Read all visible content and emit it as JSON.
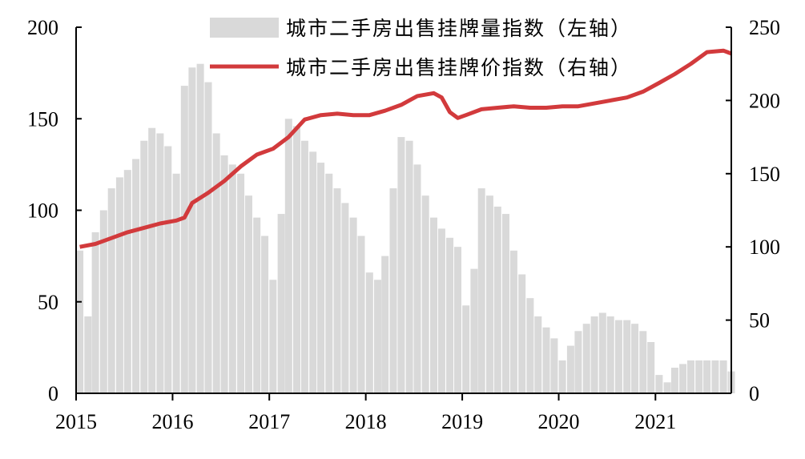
{
  "chart_data": {
    "type": "bar+line",
    "title": "",
    "x_axis": {
      "type": "date",
      "ticks": [
        "2015",
        "2016",
        "2017",
        "2018",
        "2019",
        "2020",
        "2021"
      ],
      "range": [
        "2015-01-01",
        "2021-10-15"
      ]
    },
    "y_left": {
      "ticks": [
        "0",
        "50",
        "100",
        "150",
        "200"
      ],
      "range": [
        0,
        200
      ]
    },
    "y_right": {
      "ticks": [
        "0",
        "50",
        "100",
        "150",
        "200",
        "250"
      ],
      "range": [
        0,
        250
      ]
    },
    "legend": {
      "placement": "top-center"
    },
    "grid": false,
    "series": [
      {
        "name": "城市二手房出售挂牌量指数（左轴）",
        "type": "bar",
        "axis": "left",
        "color": "#d9d9d9",
        "x": [
          "2015-01",
          "2015-02",
          "2015-03",
          "2015-04",
          "2015-05",
          "2015-06",
          "2015-07",
          "2015-08",
          "2015-09",
          "2015-10",
          "2015-11",
          "2015-12",
          "2016-01",
          "2016-02",
          "2016-03",
          "2016-04",
          "2016-05",
          "2016-06",
          "2016-07",
          "2016-08",
          "2016-09",
          "2016-10",
          "2016-11",
          "2016-12",
          "2017-01",
          "2017-02",
          "2017-03",
          "2017-04",
          "2017-05",
          "2017-06",
          "2017-07",
          "2017-08",
          "2017-09",
          "2017-10",
          "2017-11",
          "2017-12",
          "2018-01",
          "2018-02",
          "2018-03",
          "2018-04",
          "2018-05",
          "2018-06",
          "2018-07",
          "2018-08",
          "2018-09",
          "2018-10",
          "2018-11",
          "2018-12",
          "2019-01",
          "2019-02",
          "2019-03",
          "2019-04",
          "2019-05",
          "2019-06",
          "2019-07",
          "2019-08",
          "2019-09",
          "2019-10",
          "2019-11",
          "2019-12",
          "2020-01",
          "2020-02",
          "2020-03",
          "2020-04",
          "2020-05",
          "2020-06",
          "2020-07",
          "2020-08",
          "2020-09",
          "2020-10",
          "2020-11",
          "2020-12",
          "2021-01",
          "2021-02",
          "2021-03",
          "2021-04",
          "2021-05",
          "2021-06",
          "2021-07",
          "2021-08",
          "2021-09",
          "2021-10"
        ],
        "values": [
          78,
          42,
          88,
          100,
          112,
          118,
          122,
          128,
          138,
          145,
          142,
          135,
          120,
          168,
          178,
          180,
          170,
          142,
          130,
          125,
          120,
          108,
          96,
          86,
          62,
          98,
          150,
          146,
          138,
          132,
          126,
          120,
          112,
          104,
          96,
          86,
          66,
          62,
          75,
          112,
          140,
          138,
          125,
          108,
          96,
          90,
          85,
          80,
          48,
          68,
          112,
          108,
          102,
          98,
          78,
          65,
          52,
          42,
          36,
          30,
          18,
          26,
          34,
          38,
          42,
          44,
          42,
          40,
          40,
          38,
          34,
          28,
          10,
          6,
          14,
          16,
          18,
          18,
          18,
          18,
          18,
          12
        ]
      },
      {
        "name": "城市二手房出售挂牌价指数（右轴）",
        "type": "line",
        "axis": "right",
        "color": "#d23a3c",
        "x": [
          "2015-01",
          "2015-03",
          "2015-05",
          "2015-07",
          "2015-09",
          "2015-11",
          "2016-01",
          "2016-02",
          "2016-03",
          "2016-05",
          "2016-07",
          "2016-09",
          "2016-11",
          "2017-01",
          "2017-03",
          "2017-05",
          "2017-07",
          "2017-09",
          "2017-11",
          "2018-01",
          "2018-03",
          "2018-05",
          "2018-07",
          "2018-09",
          "2018-10",
          "2018-11",
          "2018-12",
          "2019-01",
          "2019-03",
          "2019-05",
          "2019-07",
          "2019-09",
          "2019-11",
          "2020-01",
          "2020-03",
          "2020-05",
          "2020-07",
          "2020-09",
          "2020-11",
          "2021-01",
          "2021-03",
          "2021-05",
          "2021-07",
          "2021-09",
          "2021-10"
        ],
        "values": [
          100,
          102,
          106,
          110,
          113,
          116,
          118,
          120,
          130,
          137,
          145,
          155,
          163,
          167,
          175,
          187,
          190,
          191,
          190,
          190,
          193,
          197,
          203,
          205,
          202,
          192,
          188,
          190,
          194,
          195,
          196,
          195,
          195,
          196,
          196,
          198,
          200,
          202,
          206,
          212,
          218,
          225,
          233,
          234,
          232
        ]
      }
    ]
  }
}
